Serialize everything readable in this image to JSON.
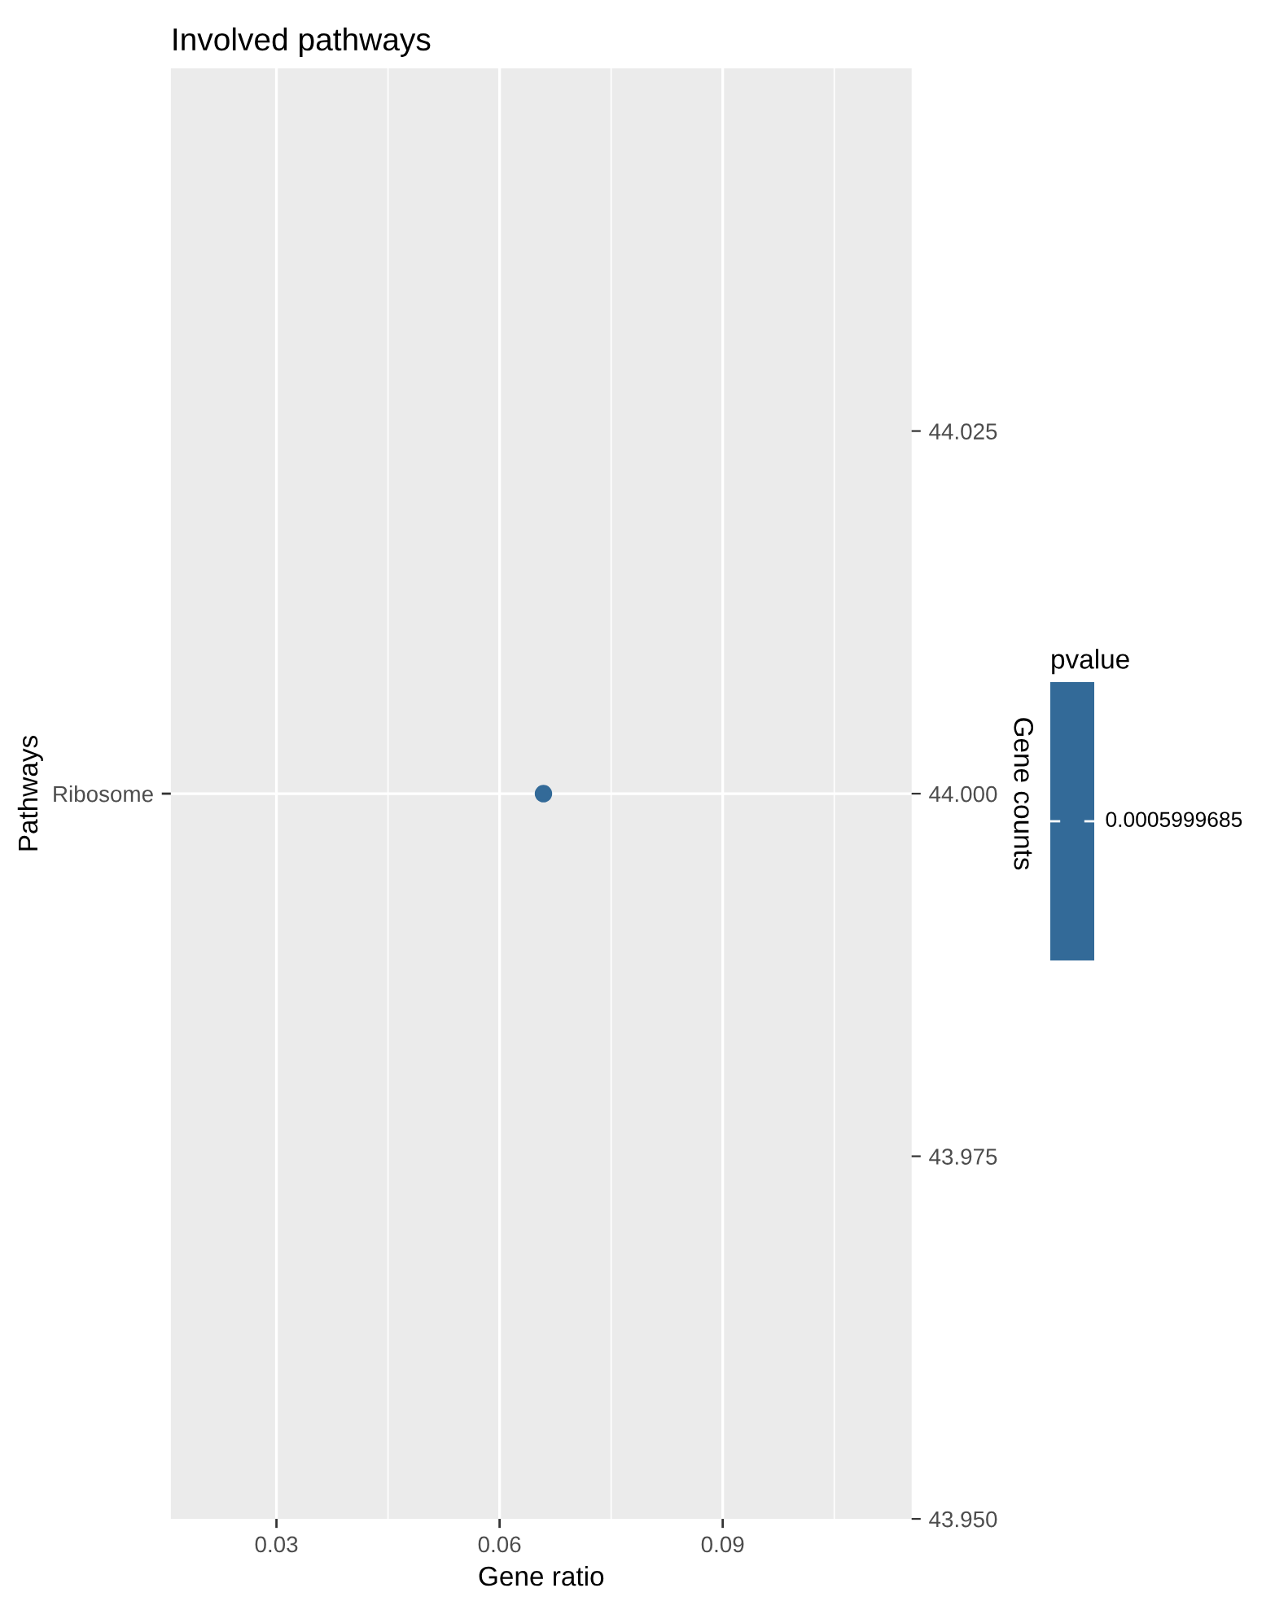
{
  "chart_data": {
    "type": "scatter",
    "title": "Involved pathways",
    "xlabel": "Gene ratio",
    "ylabel": "Pathways",
    "y2label": "Gene counts",
    "clabel": "pvalue",
    "y_categories": [
      "Ribosome"
    ],
    "series": [
      {
        "x": [
          0.0659
        ],
        "values": [
          44.0
        ],
        "axis": "y2",
        "color": "#336a98"
      }
    ],
    "xlim": [
      0.0158,
      0.1154
    ],
    "xticks": [
      0.03,
      {
        "value": 0.045,
        "label": null
      },
      0.06,
      {
        "value": 0.075,
        "label": null
      },
      0.09,
      {
        "value": 0.105,
        "label": null
      }
    ],
    "y2lim": [
      43.95,
      44.05
    ],
    "y2ticks": [
      {
        "value": 43.95,
        "label": "43.950"
      },
      {
        "value": 43.975,
        "label": "43.975"
      },
      {
        "value": 44.0,
        "label": "44.000"
      },
      {
        "value": 44.025,
        "label": "44.025"
      }
    ],
    "annotations": [
      "0.0005999685"
    ],
    "grid": true,
    "marker": "circle"
  }
}
